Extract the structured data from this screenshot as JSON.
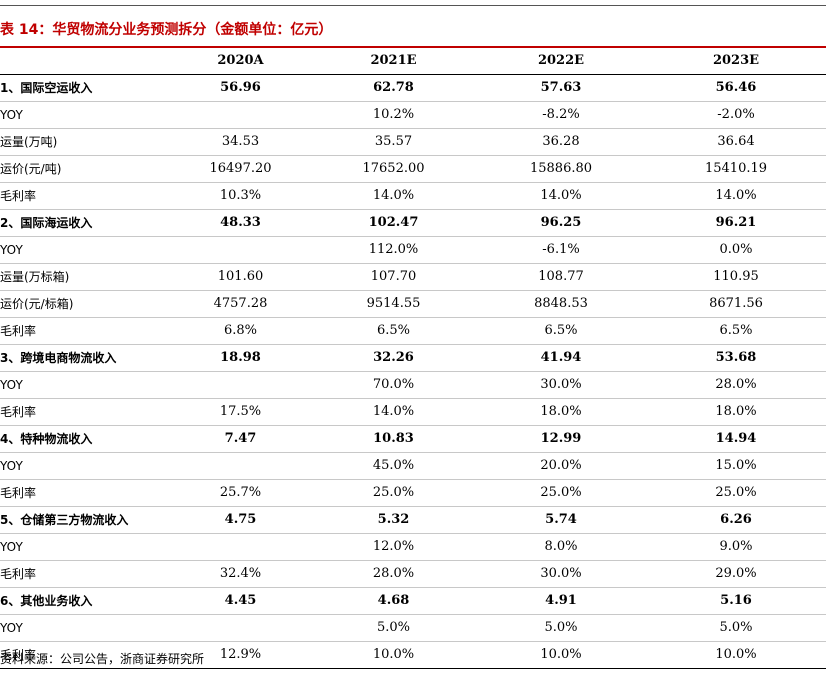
{
  "title": "表 14：华贸物流分业务预测拆分（金额单位：亿元）",
  "table": {
    "columns": [
      "",
      "2020A",
      "2021E",
      "2022E",
      "2023E"
    ],
    "rows": [
      {
        "label": "1、国际空运收入",
        "values": [
          "56.96",
          "62.78",
          "57.63",
          "56.46"
        ],
        "bold": true
      },
      {
        "label": "YOY",
        "values": [
          "",
          "10.2%",
          "-8.2%",
          "-2.0%"
        ],
        "bold": false
      },
      {
        "label": "运量(万吨)",
        "values": [
          "34.53",
          "35.57",
          "36.28",
          "36.64"
        ],
        "bold": false
      },
      {
        "label": "运价(元/吨)",
        "values": [
          "16497.20",
          "17652.00",
          "15886.80",
          "15410.19"
        ],
        "bold": false
      },
      {
        "label": "毛利率",
        "values": [
          "10.3%",
          "14.0%",
          "14.0%",
          "14.0%"
        ],
        "bold": false
      },
      {
        "label": "2、国际海运收入",
        "values": [
          "48.33",
          "102.47",
          "96.25",
          "96.21"
        ],
        "bold": true
      },
      {
        "label": "YOY",
        "values": [
          "",
          "112.0%",
          "-6.1%",
          "0.0%"
        ],
        "bold": false
      },
      {
        "label": "运量(万标箱)",
        "values": [
          "101.60",
          "107.70",
          "108.77",
          "110.95"
        ],
        "bold": false
      },
      {
        "label": "运价(元/标箱)",
        "values": [
          "4757.28",
          "9514.55",
          "8848.53",
          "8671.56"
        ],
        "bold": false
      },
      {
        "label": "毛利率",
        "values": [
          "6.8%",
          "6.5%",
          "6.5%",
          "6.5%"
        ],
        "bold": false
      },
      {
        "label": "3、跨境电商物流收入",
        "values": [
          "18.98",
          "32.26",
          "41.94",
          "53.68"
        ],
        "bold": true
      },
      {
        "label": "YOY",
        "values": [
          "",
          "70.0%",
          "30.0%",
          "28.0%"
        ],
        "bold": false
      },
      {
        "label": "毛利率",
        "values": [
          "17.5%",
          "14.0%",
          "18.0%",
          "18.0%"
        ],
        "bold": false
      },
      {
        "label": "4、特种物流收入",
        "values": [
          "7.47",
          "10.83",
          "12.99",
          "14.94"
        ],
        "bold": true
      },
      {
        "label": "YOY",
        "values": [
          "",
          "45.0%",
          "20.0%",
          "15.0%"
        ],
        "bold": false
      },
      {
        "label": "毛利率",
        "values": [
          "25.7%",
          "25.0%",
          "25.0%",
          "25.0%"
        ],
        "bold": false
      },
      {
        "label": "5、仓储第三方物流收入",
        "values": [
          "4.75",
          "5.32",
          "5.74",
          "6.26"
        ],
        "bold": true
      },
      {
        "label": "YOY",
        "values": [
          "",
          "12.0%",
          "8.0%",
          "9.0%"
        ],
        "bold": false
      },
      {
        "label": "毛利率",
        "values": [
          "32.4%",
          "28.0%",
          "30.0%",
          "29.0%"
        ],
        "bold": false
      },
      {
        "label": "6、其他业务收入",
        "values": [
          "4.45",
          "4.68",
          "4.91",
          "5.16"
        ],
        "bold": true
      },
      {
        "label": "YOY",
        "values": [
          "",
          "5.0%",
          "5.0%",
          "5.0%"
        ],
        "bold": false
      },
      {
        "label": "毛利率",
        "values": [
          "12.9%",
          "10.0%",
          "10.0%",
          "10.0%"
        ],
        "bold": false
      }
    ]
  },
  "source": "资料来源：公司公告，浙商证券研究所"
}
